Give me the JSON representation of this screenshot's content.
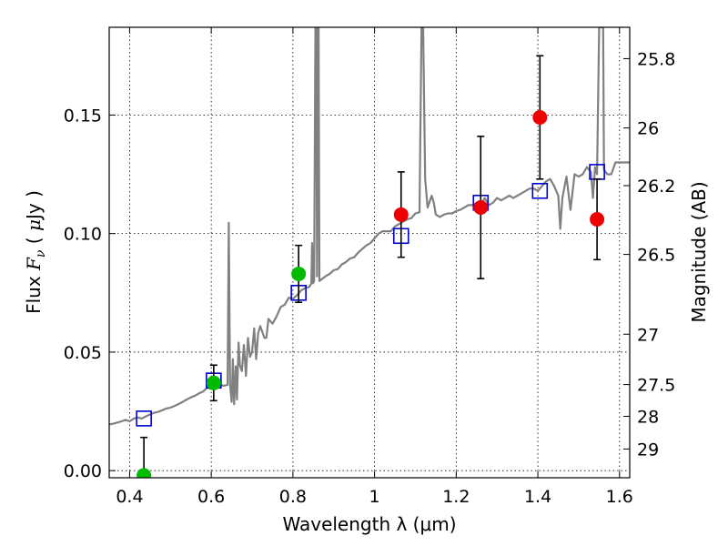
{
  "chart_data": {
    "type": "scatter",
    "xlabel": "Wavelength  λ (μm)",
    "ylabel_parts": {
      "pre": "Flux  ",
      "symbol": "F",
      "subscript": "ν",
      "mid": "  ( ",
      "unit_symbol": "μ",
      "post": "Jy )"
    },
    "y2label": "Magnitude (AB)",
    "xlim": [
      0.35,
      1.625
    ],
    "ylim": [
      -0.003,
      0.187
    ],
    "grid": true,
    "x_ticks": [
      {
        "value": 0.4,
        "label": "0.4"
      },
      {
        "value": 0.6,
        "label": "0.6"
      },
      {
        "value": 0.8,
        "label": "0.8"
      },
      {
        "value": 1.0,
        "label": "1"
      },
      {
        "value": 1.2,
        "label": "1.2"
      },
      {
        "value": 1.4,
        "label": "1.4"
      },
      {
        "value": 1.6,
        "label": "1.6"
      }
    ],
    "y_ticks": [
      {
        "value": 0.0,
        "label": "0.00"
      },
      {
        "value": 0.05,
        "label": "0.05"
      },
      {
        "value": 0.1,
        "label": "0.10"
      },
      {
        "value": 0.15,
        "label": "0.15"
      }
    ],
    "y2_ticks": [
      {
        "value": 25.8,
        "label": "25.8"
      },
      {
        "value": 26.0,
        "label": "26"
      },
      {
        "value": 26.2,
        "label": "26.2"
      },
      {
        "value": 26.5,
        "label": "26.5"
      },
      {
        "value": 27.0,
        "label": "27"
      },
      {
        "value": 27.5,
        "label": "27.5"
      },
      {
        "value": 28.0,
        "label": "28"
      },
      {
        "value": 29.0,
        "label": "29"
      }
    ],
    "model_spectrum": {
      "color": "#808080",
      "points": [
        [
          0.35,
          0.0195
        ],
        [
          0.36,
          0.0198
        ],
        [
          0.37,
          0.0203
        ],
        [
          0.38,
          0.0208
        ],
        [
          0.39,
          0.0214
        ],
        [
          0.4,
          0.0208
        ],
        [
          0.41,
          0.0219
        ],
        [
          0.42,
          0.0224
        ],
        [
          0.43,
          0.022
        ],
        [
          0.44,
          0.0229
        ],
        [
          0.45,
          0.0237
        ],
        [
          0.46,
          0.0244
        ],
        [
          0.47,
          0.0248
        ],
        [
          0.48,
          0.0255
        ],
        [
          0.49,
          0.0262
        ],
        [
          0.5,
          0.0266
        ],
        [
          0.51,
          0.0273
        ],
        [
          0.52,
          0.0281
        ],
        [
          0.53,
          0.029
        ],
        [
          0.54,
          0.03
        ],
        [
          0.55,
          0.0309
        ],
        [
          0.56,
          0.0316
        ],
        [
          0.57,
          0.0326
        ],
        [
          0.58,
          0.0334
        ],
        [
          0.59,
          0.035
        ],
        [
          0.6,
          0.0345
        ],
        [
          0.61,
          0.036
        ],
        [
          0.62,
          0.0364
        ],
        [
          0.63,
          0.0358
        ],
        [
          0.64,
          0.0362
        ],
        [
          0.643,
          0.1045
        ],
        [
          0.646,
          0.0365
        ],
        [
          0.65,
          0.029
        ],
        [
          0.653,
          0.047
        ],
        [
          0.656,
          0.028
        ],
        [
          0.66,
          0.044
        ],
        [
          0.663,
          0.03
        ],
        [
          0.667,
          0.054
        ],
        [
          0.67,
          0.0445
        ],
        [
          0.675,
          0.042
        ],
        [
          0.68,
          0.053
        ],
        [
          0.685,
          0.04
        ],
        [
          0.69,
          0.056
        ],
        [
          0.695,
          0.048
        ],
        [
          0.7,
          0.05
        ],
        [
          0.705,
          0.06
        ],
        [
          0.71,
          0.047
        ],
        [
          0.715,
          0.058
        ],
        [
          0.72,
          0.061
        ],
        [
          0.73,
          0.056
        ],
        [
          0.735,
          0.056
        ],
        [
          0.74,
          0.064
        ],
        [
          0.75,
          0.062
        ],
        [
          0.76,
          0.065
        ],
        [
          0.77,
          0.069
        ],
        [
          0.78,
          0.07
        ],
        [
          0.79,
          0.073
        ],
        [
          0.8,
          0.0725
        ],
        [
          0.81,
          0.074
        ],
        [
          0.82,
          0.076
        ],
        [
          0.83,
          0.077
        ],
        [
          0.84,
          0.0775
        ],
        [
          0.845,
          0.079
        ],
        [
          0.847,
          0.096
        ],
        [
          0.849,
          0.079
        ],
        [
          0.852,
          0.08
        ],
        [
          0.855,
          0.187
        ],
        [
          0.857,
          0.187
        ],
        [
          0.859,
          0.082
        ],
        [
          0.861,
          0.187
        ],
        [
          0.863,
          0.187
        ],
        [
          0.865,
          0.08
        ],
        [
          0.88,
          0.082
        ],
        [
          0.89,
          0.083
        ],
        [
          0.9,
          0.0845
        ],
        [
          0.91,
          0.085
        ],
        [
          0.92,
          0.087
        ],
        [
          0.93,
          0.088
        ],
        [
          0.94,
          0.0895
        ],
        [
          0.95,
          0.09
        ],
        [
          0.96,
          0.092
        ],
        [
          0.97,
          0.0935
        ],
        [
          0.98,
          0.095
        ],
        [
          0.99,
          0.096
        ],
        [
          1.0,
          0.098
        ],
        [
          1.01,
          0.1
        ],
        [
          1.02,
          0.101
        ],
        [
          1.03,
          0.101
        ],
        [
          1.04,
          0.101
        ],
        [
          1.05,
          0.103
        ],
        [
          1.06,
          0.104
        ],
        [
          1.07,
          0.105
        ],
        [
          1.08,
          0.106
        ],
        [
          1.09,
          0.1065
        ],
        [
          1.1,
          0.1085
        ],
        [
          1.11,
          0.109
        ],
        [
          1.115,
          0.187
        ],
        [
          1.119,
          0.187
        ],
        [
          1.124,
          0.123
        ],
        [
          1.13,
          0.111
        ],
        [
          1.14,
          0.116
        ],
        [
          1.145,
          0.113
        ],
        [
          1.15,
          0.108
        ],
        [
          1.16,
          0.107
        ],
        [
          1.17,
          0.108
        ],
        [
          1.18,
          0.1085
        ],
        [
          1.19,
          0.1085
        ],
        [
          1.2,
          0.1095
        ],
        [
          1.21,
          0.11
        ],
        [
          1.22,
          0.111
        ],
        [
          1.23,
          0.112
        ],
        [
          1.24,
          0.112
        ],
        [
          1.25,
          0.113
        ],
        [
          1.26,
          0.112
        ],
        [
          1.27,
          0.115
        ],
        [
          1.28,
          0.112
        ],
        [
          1.29,
          0.113
        ],
        [
          1.3,
          0.115
        ],
        [
          1.31,
          0.114
        ],
        [
          1.32,
          0.115
        ],
        [
          1.33,
          0.116
        ],
        [
          1.34,
          0.115
        ],
        [
          1.35,
          0.116
        ],
        [
          1.36,
          0.117
        ],
        [
          1.37,
          0.118
        ],
        [
          1.38,
          0.119
        ],
        [
          1.39,
          0.119
        ],
        [
          1.4,
          0.118
        ],
        [
          1.41,
          0.12
        ],
        [
          1.42,
          0.122
        ],
        [
          1.43,
          0.123
        ],
        [
          1.44,
          0.12
        ],
        [
          1.45,
          0.116
        ],
        [
          1.455,
          0.102
        ],
        [
          1.46,
          0.115
        ],
        [
          1.47,
          0.124
        ],
        [
          1.48,
          0.11
        ],
        [
          1.49,
          0.125
        ],
        [
          1.5,
          0.124
        ],
        [
          1.51,
          0.125
        ],
        [
          1.52,
          0.128
        ],
        [
          1.53,
          0.126
        ],
        [
          1.535,
          0.115
        ],
        [
          1.54,
          0.128
        ],
        [
          1.545,
          0.125
        ],
        [
          1.55,
          0.187
        ],
        [
          1.56,
          0.187
        ],
        [
          1.562,
          0.127
        ],
        [
          1.57,
          0.125
        ],
        [
          1.58,
          0.125
        ],
        [
          1.59,
          0.13
        ],
        [
          1.6,
          0.13
        ],
        [
          1.61,
          0.13
        ],
        [
          1.625,
          0.13
        ]
      ]
    },
    "series": [
      {
        "marker": "open-square",
        "color": "#0000cc",
        "points": [
          {
            "x": 0.435,
            "y": 0.022
          },
          {
            "x": 0.606,
            "y": 0.038
          },
          {
            "x": 0.814,
            "y": 0.075
          },
          {
            "x": 1.065,
            "y": 0.099
          },
          {
            "x": 1.26,
            "y": 0.113
          },
          {
            "x": 1.405,
            "y": 0.118
          },
          {
            "x": 1.545,
            "y": 0.126
          }
        ]
      },
      {
        "marker": "filled-circle",
        "color": "#00bb00",
        "points": [
          {
            "x": 0.435,
            "y": -0.002,
            "yerr": 0.016
          },
          {
            "x": 0.606,
            "y": 0.037,
            "yerr": 0.0075
          },
          {
            "x": 0.814,
            "y": 0.083,
            "yerr": 0.012
          }
        ]
      },
      {
        "marker": "filled-circle",
        "color": "#ee0000",
        "points": [
          {
            "x": 1.065,
            "y": 0.108,
            "yerr": 0.018
          },
          {
            "x": 1.26,
            "y": 0.111,
            "yerr": 0.03
          },
          {
            "x": 1.405,
            "y": 0.149,
            "yerr": 0.026
          },
          {
            "x": 1.545,
            "y": 0.106,
            "yerr": 0.017
          }
        ]
      }
    ]
  }
}
